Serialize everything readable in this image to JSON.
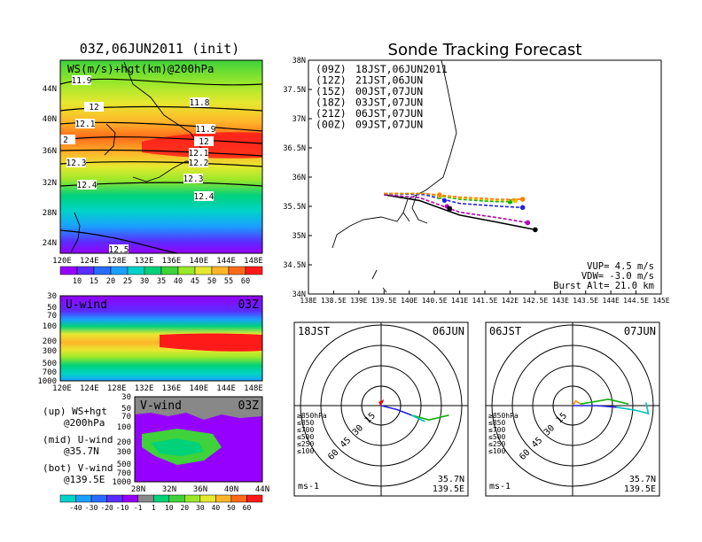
{
  "left_panel": {
    "title": "03Z,06JUN2011 (init)",
    "ws_label": "WS(m/s)+hgt(km)@200hPa",
    "lat_ticks": [
      "44N",
      "40N",
      "36N",
      "32N",
      "28N",
      "24N"
    ],
    "lon_ticks": [
      "120E",
      "124E",
      "128E",
      "132E",
      "136E",
      "140E",
      "144E",
      "148E"
    ],
    "contour_labels": [
      "11.9",
      "12",
      "11.8",
      "12.1",
      "11.9",
      "12",
      "12.1",
      "12.2",
      "12.3",
      "12.3",
      "12.4",
      "12.4",
      "12.5",
      "2"
    ],
    "colorbar_ticks": [
      "10",
      "15",
      "20",
      "25",
      "30",
      "35",
      "40",
      "45",
      "50",
      "55",
      "60"
    ],
    "colorbar_colors": [
      "#9600ff",
      "#5a2cff",
      "#2a6bff",
      "#1aa0ff",
      "#00d3c8",
      "#00d27a",
      "#3fd23a",
      "#9be82a",
      "#e6e830",
      "#ffb52a",
      "#ff6a1a",
      "#ff1a1a"
    ]
  },
  "uwind": {
    "label": "U-wind",
    "time": "03Z",
    "y_ticks": [
      "30",
      "50",
      "70",
      "100",
      "200",
      "300",
      "500",
      "700",
      "1000"
    ],
    "x_ticks": [
      "120E",
      "124E",
      "128E",
      "132E",
      "136E",
      "140E",
      "144E",
      "148E"
    ]
  },
  "vwind": {
    "label": "V-wind",
    "time": "03Z",
    "y_ticks": [
      "30",
      "50",
      "70",
      "100",
      "200",
      "300",
      "500",
      "700",
      "1000"
    ],
    "x_ticks": [
      "28N",
      "32N",
      "36N",
      "40N",
      "44N"
    ],
    "colorbar_ticks": [
      "-40",
      "-30",
      "-20",
      "-10",
      "-1",
      "1",
      "10",
      "20",
      "30",
      "40",
      "50",
      "60"
    ]
  },
  "legend_text": {
    "up1": "(up) WS+hgt",
    "up2": "@200hPa",
    "mid1": "(mid) U-wind",
    "mid2": "@35.7N",
    "bot1": "(bot) V-wind",
    "bot2": "@139.5E"
  },
  "chart_data": {
    "type": "line",
    "title": "Sonde Tracking Forecast",
    "lat_ticks": [
      "38N",
      "37.5N",
      "37N",
      "36.5N",
      "36N",
      "35.5N",
      "35N",
      "34.5N",
      "34N"
    ],
    "lon_ticks": [
      "138E",
      "138.5E",
      "139E",
      "139.5E",
      "140E",
      "140.5E",
      "141E",
      "141.5E",
      "142E",
      "142.5E",
      "143E",
      "143.5E",
      "144E",
      "144.5E",
      "145E"
    ],
    "xlim": [
      138,
      145
    ],
    "ylim": [
      34,
      38
    ],
    "launch": {
      "lon": 139.5,
      "lat": 35.7
    },
    "series": [
      {
        "name": "(09Z)",
        "time": "18JST,06JUN2011",
        "color": "#000000",
        "points": [
          [
            139.5,
            35.7
          ],
          [
            140.2,
            35.6
          ],
          [
            141.0,
            35.35
          ],
          [
            141.8,
            35.22
          ],
          [
            142.5,
            35.1
          ]
        ],
        "burst": [
          140.8,
          35.46
        ]
      },
      {
        "name": "(12Z)",
        "time": "21JST,06JUN",
        "color": "#b000b0",
        "points": [
          [
            139.5,
            35.7
          ],
          [
            140.2,
            35.65
          ],
          [
            141.0,
            35.4
          ],
          [
            141.8,
            35.3
          ],
          [
            142.35,
            35.22
          ]
        ],
        "burst": [
          140.75,
          35.5
        ]
      },
      {
        "name": "(15Z)",
        "time": "00JST,07JUN",
        "color": "#2020e0",
        "points": [
          [
            139.5,
            35.72
          ],
          [
            140.3,
            35.7
          ],
          [
            141.0,
            35.55
          ],
          [
            141.8,
            35.5
          ],
          [
            142.25,
            35.48
          ]
        ],
        "burst": [
          140.7,
          35.6
        ]
      },
      {
        "name": "(18Z)",
        "time": "03JST,07JUN",
        "color": "#10b010",
        "points": [
          [
            139.5,
            35.72
          ],
          [
            140.3,
            35.72
          ],
          [
            141.0,
            35.62
          ],
          [
            141.7,
            35.58
          ],
          [
            142.0,
            35.58
          ]
        ],
        "burst": [
          140.6,
          35.66
        ]
      },
      {
        "name": "(21Z)",
        "time": "06JST,07JUN",
        "color": "#e8c000",
        "points": [
          [
            139.5,
            35.72
          ],
          [
            140.3,
            35.72
          ],
          [
            141.0,
            35.64
          ],
          [
            141.8,
            35.6
          ],
          [
            142.1,
            35.6
          ]
        ],
        "burst": [
          140.6,
          35.68
        ]
      },
      {
        "name": "(00Z)",
        "time": "09JST,07JUN",
        "color": "#ff8000",
        "points": [
          [
            139.5,
            35.72
          ],
          [
            140.3,
            35.72
          ],
          [
            141.0,
            35.66
          ],
          [
            141.8,
            35.62
          ],
          [
            142.25,
            35.62
          ]
        ],
        "burst": [
          140.6,
          35.7
        ]
      }
    ],
    "info": [
      "VUP= 4.5 m/s",
      "VDW= -3.0 m/s",
      "Burst Alt= 21.0 km"
    ]
  },
  "hodographs": [
    {
      "left_label": "18JST",
      "right_label": "06JUN",
      "lat": "35.7N",
      "lon": "139.5E",
      "unit": "ms-1",
      "ring_labels": [
        "15",
        "30",
        "45",
        "60"
      ],
      "legend": [
        {
          "text": "≥850hPa",
          "color": "#ff0000"
        },
        {
          "text": "≤850",
          "color": "#ff8c00"
        },
        {
          "text": "≤700",
          "color": "#e8c000"
        },
        {
          "text": "≤500",
          "color": "#10b010"
        },
        {
          "text": "≤250",
          "color": "#00c0c0"
        },
        {
          "text": "≤100",
          "color": "#2020e0"
        }
      ]
    },
    {
      "left_label": "06JST",
      "right_label": "07JUN",
      "lat": "35.7N",
      "lon": "139.5E",
      "unit": "ms-1",
      "ring_labels": [
        "15",
        "30",
        "45",
        "60"
      ],
      "legend": [
        {
          "text": "≥850hPa",
          "color": "#ff0000"
        },
        {
          "text": "≤850",
          "color": "#ff8c00"
        },
        {
          "text": "≤700",
          "color": "#e8c000"
        },
        {
          "text": "≤500",
          "color": "#10b010"
        },
        {
          "text": "≤250",
          "color": "#00c0c0"
        },
        {
          "text": "≤100",
          "color": "#2020e0"
        }
      ]
    }
  ]
}
